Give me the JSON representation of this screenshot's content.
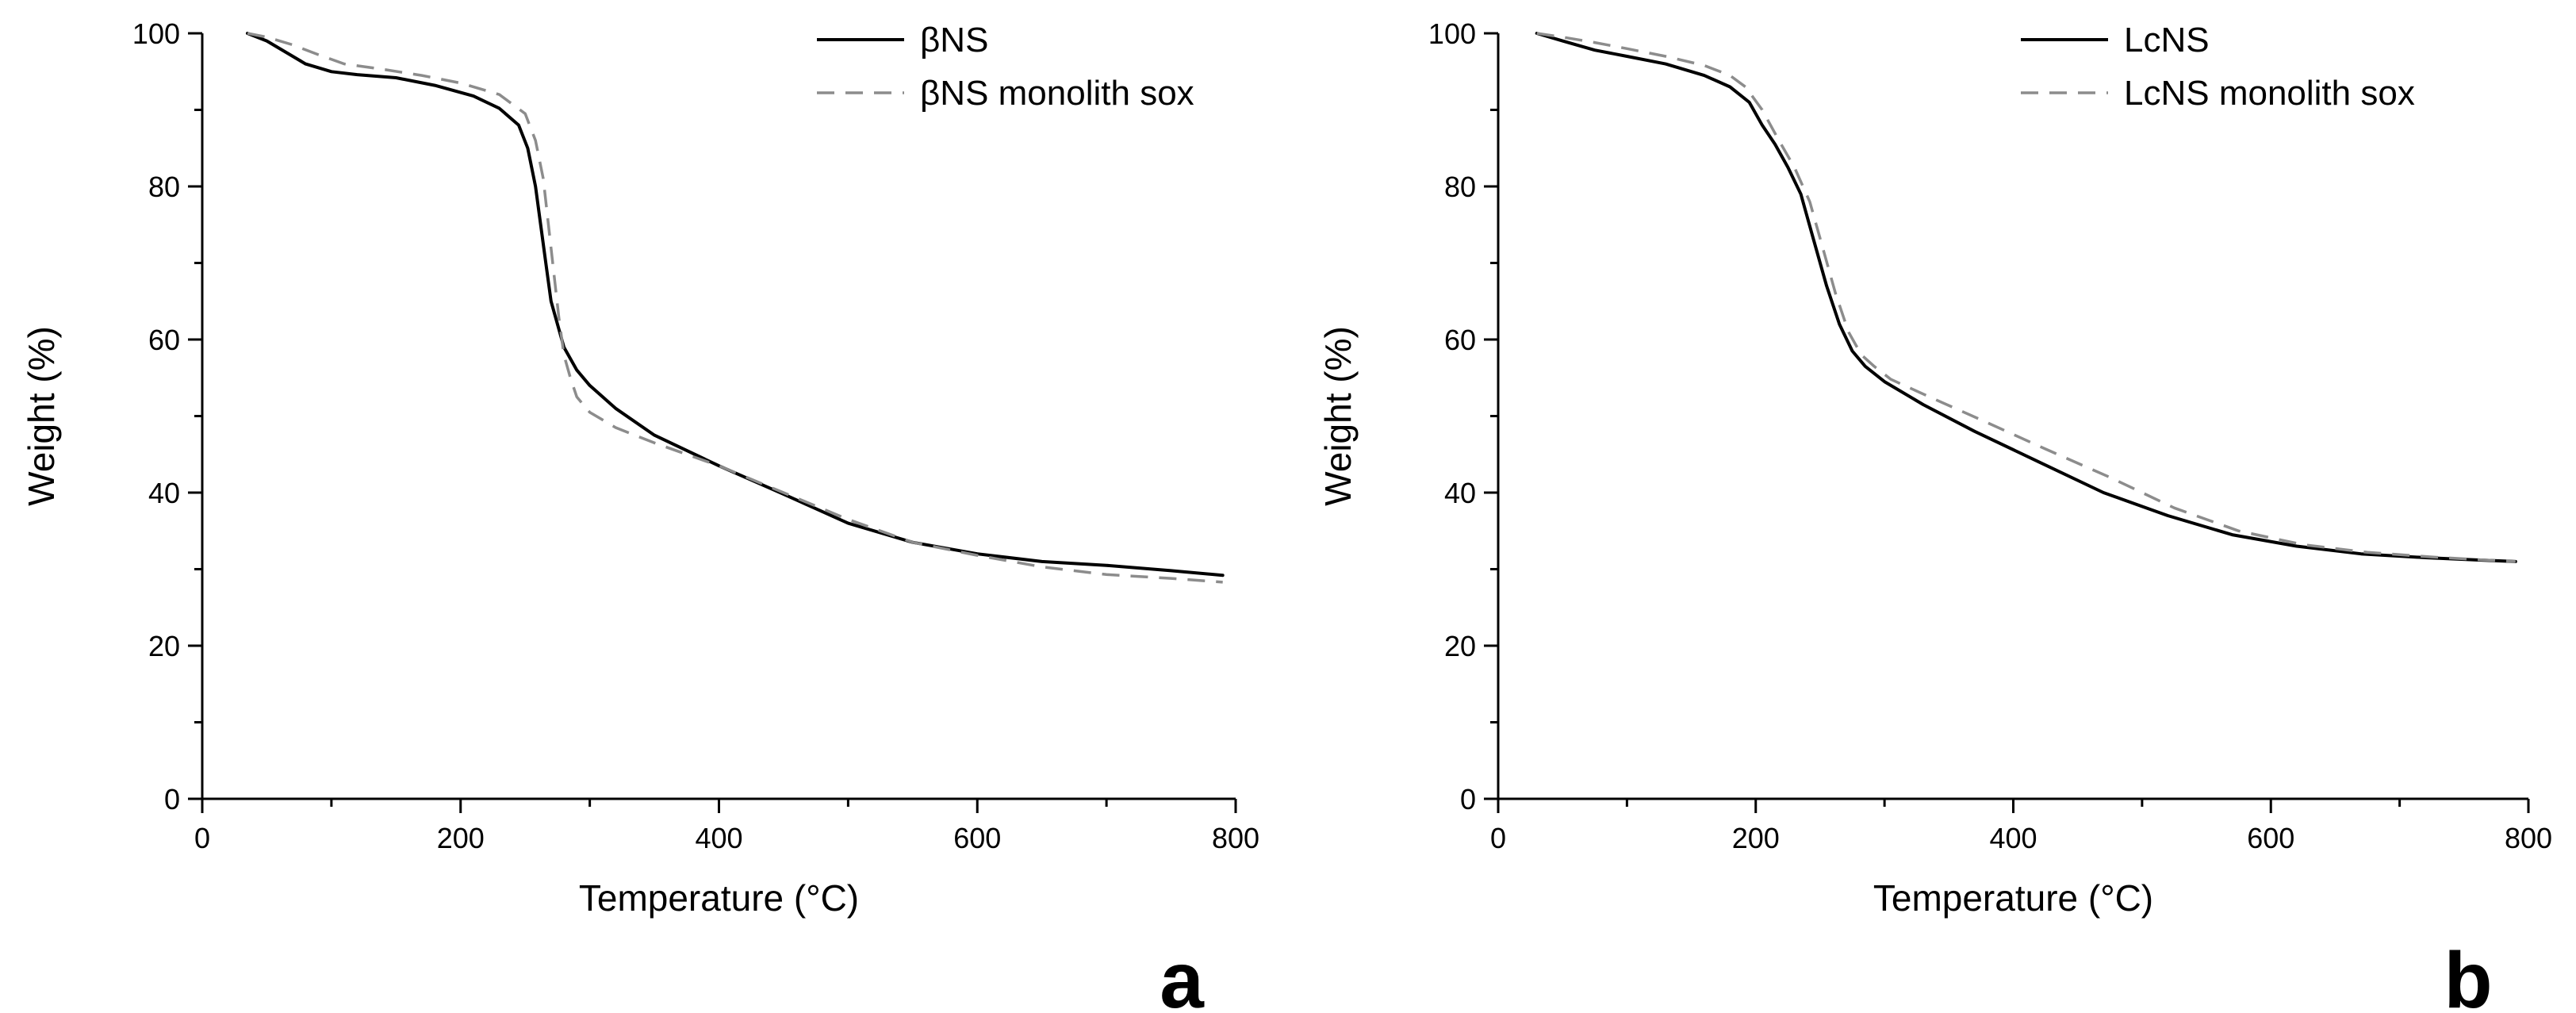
{
  "chart_data": [
    {
      "type": "line",
      "panel_label": "a",
      "xlabel": "Temperature (°C)",
      "ylabel": "Weight (%)",
      "xlim": [
        0,
        800
      ],
      "ylim": [
        0,
        100
      ],
      "xticks": [
        0,
        200,
        400,
        600,
        800
      ],
      "yticks": [
        0,
        20,
        40,
        60,
        80,
        100
      ],
      "grid": false,
      "legend_position": "top-right",
      "series": [
        {
          "name": "βNS",
          "style": "solid",
          "color": "#000000",
          "x": [
            35,
            50,
            65,
            80,
            100,
            120,
            150,
            180,
            210,
            230,
            245,
            252,
            258,
            262,
            266,
            270,
            275,
            280,
            290,
            300,
            320,
            350,
            400,
            450,
            500,
            550,
            600,
            650,
            700,
            750,
            790
          ],
          "y": [
            100,
            99,
            97.5,
            96,
            95,
            94.6,
            94.2,
            93.2,
            91.8,
            90.2,
            88,
            85,
            80,
            75,
            70,
            65,
            62,
            59,
            56,
            54,
            51,
            47.5,
            43.5,
            39.8,
            36,
            33.5,
            32,
            31,
            30.5,
            29.8,
            29.2
          ]
        },
        {
          "name": "βNS monolith sox",
          "style": "dashed",
          "color": "#8c8c8c",
          "x": [
            35,
            50,
            70,
            90,
            110,
            140,
            170,
            200,
            230,
            250,
            258,
            264,
            268,
            272,
            276,
            280,
            285,
            290,
            300,
            320,
            350,
            400,
            450,
            500,
            550,
            600,
            650,
            700,
            750,
            790
          ],
          "y": [
            100,
            99.5,
            98.5,
            97.2,
            96,
            95.3,
            94.5,
            93.5,
            92,
            89.5,
            86,
            81,
            75,
            69,
            63,
            58,
            55,
            52.5,
            50.5,
            48.5,
            46.5,
            43.5,
            40,
            36.5,
            33.5,
            31.8,
            30.3,
            29.3,
            28.8,
            28.3
          ]
        }
      ]
    },
    {
      "type": "line",
      "panel_label": "b",
      "xlabel": "Temperature (°C)",
      "ylabel": "Weight (%)",
      "xlim": [
        0,
        800
      ],
      "ylim": [
        0,
        100
      ],
      "xticks": [
        0,
        200,
        400,
        600,
        800
      ],
      "yticks": [
        0,
        20,
        40,
        60,
        80,
        100
      ],
      "grid": false,
      "legend_position": "top-right",
      "series": [
        {
          "name": "LcNS",
          "style": "solid",
          "color": "#000000",
          "x": [
            30,
            50,
            75,
            100,
            130,
            160,
            180,
            195,
            205,
            215,
            225,
            235,
            245,
            255,
            265,
            275,
            285,
            300,
            330,
            370,
            420,
            470,
            520,
            570,
            620,
            670,
            720,
            760,
            790
          ],
          "y": [
            100,
            99,
            97.8,
            97,
            96,
            94.5,
            93,
            91,
            88,
            85.5,
            82.5,
            79,
            73,
            67,
            62,
            58.5,
            56.5,
            54.5,
            51.5,
            48,
            44,
            40,
            37,
            34.5,
            33,
            32,
            31.5,
            31.2,
            31
          ]
        },
        {
          "name": "LcNS monolith sox",
          "style": "dashed",
          "color": "#8c8c8c",
          "x": [
            30,
            50,
            75,
            100,
            130,
            160,
            180,
            192,
            205,
            218,
            230,
            242,
            252,
            262,
            272,
            282,
            292,
            305,
            335,
            375,
            425,
            475,
            525,
            575,
            625,
            675,
            725,
            765,
            790
          ],
          "y": [
            100,
            99.5,
            98.8,
            98,
            97,
            95.8,
            94.5,
            93,
            90,
            86,
            82.5,
            78,
            72,
            66,
            61,
            58,
            56.5,
            54.8,
            52.5,
            49.5,
            45.7,
            42,
            38,
            35,
            33.2,
            32.2,
            31.6,
            31.2,
            31
          ]
        }
      ]
    }
  ]
}
